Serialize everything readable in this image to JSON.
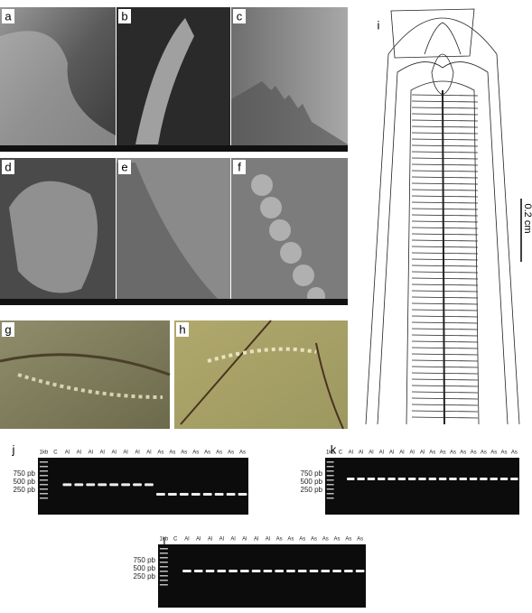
{
  "panel_labels": [
    "a",
    "b",
    "c",
    "d",
    "e",
    "f",
    "g",
    "h",
    "i",
    "j",
    "k",
    "l"
  ],
  "scale_bar": "0.2 cm",
  "gels": [
    {
      "lanes": [
        "1kb",
        "C",
        "Al",
        "Al",
        "Al",
        "Al",
        "Al",
        "Al",
        "Al",
        "Al",
        "As",
        "As",
        "As",
        "As",
        "As",
        "As",
        "As",
        "As"
      ],
      "markers": [
        "750 pb",
        "500 pb",
        "250 pb"
      ]
    },
    {
      "lanes": [
        "1kb",
        "C",
        "Al",
        "Al",
        "Al",
        "Al",
        "Al",
        "Al",
        "Al",
        "Al",
        "As",
        "As",
        "As",
        "As",
        "As",
        "As",
        "As",
        "As",
        "As"
      ],
      "markers": [
        "750 pb",
        "500 pb",
        "250 pb"
      ]
    },
    {
      "lanes": [
        "1kb",
        "C",
        "Al",
        "Al",
        "Al",
        "Al",
        "Al",
        "Al",
        "Al",
        "Al",
        "As",
        "As",
        "As",
        "As",
        "As",
        "As",
        "As",
        "As"
      ],
      "markers": [
        "750 pb",
        "500 pb",
        "250 pb"
      ]
    }
  ]
}
